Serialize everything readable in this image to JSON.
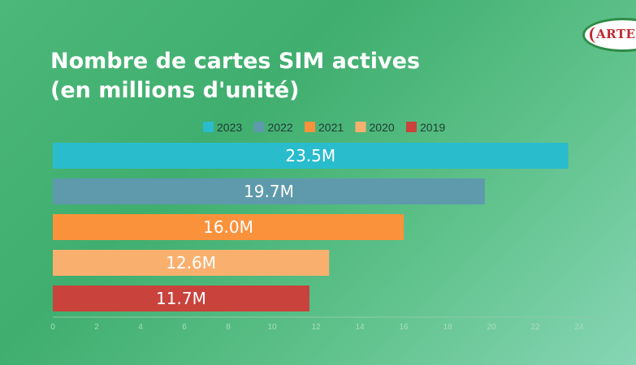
{
  "title_lines": [
    "Nombre de cartes SIM actives",
    "(en millions d'unité)"
  ],
  "logo": {
    "text": "ARTEC",
    "color": "#c2272d"
  },
  "chart_data": {
    "type": "bar",
    "orientation": "horizontal",
    "categories": [
      "2023",
      "2022",
      "2021",
      "2020",
      "2019"
    ],
    "values": [
      23.5,
      19.7,
      16.0,
      12.6,
      11.7
    ],
    "value_labels": [
      "23.5M",
      "19.7M",
      "16.0M",
      "12.6M",
      "11.7M"
    ],
    "colors": [
      "#29bccc",
      "#5e9aac",
      "#fa923c",
      "#f9b06f",
      "#c9423c"
    ],
    "legend": [
      "2023",
      "2022",
      "2021",
      "2020",
      "2019"
    ],
    "legend_position": "top",
    "xticks": [
      0,
      2,
      4,
      6,
      8,
      10,
      12,
      14,
      16,
      18,
      20,
      22,
      24
    ],
    "xlim": [
      0,
      25
    ],
    "grid": false
  }
}
